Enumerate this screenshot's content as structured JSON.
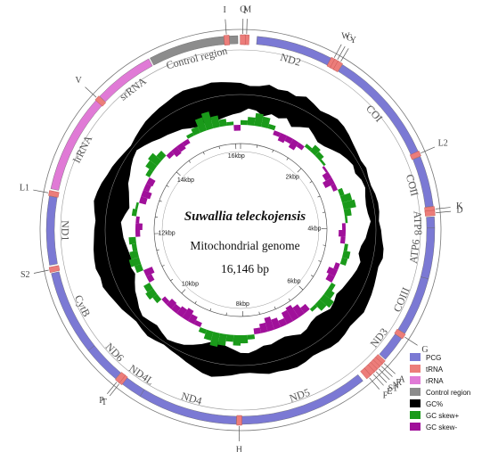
{
  "center": {
    "species": "Suwallia teleckojensis",
    "subtitle": "Mitochondrial genome",
    "length": "16,146 bp"
  },
  "genome": {
    "total_bp": 16146,
    "features": [
      {
        "name": "Control region",
        "type": "control",
        "start": 14900,
        "end": 16110,
        "label": "Control region"
      },
      {
        "name": "ND2",
        "type": "pcg",
        "start": 220,
        "end": 1250,
        "label": "ND2"
      },
      {
        "name": "COI",
        "type": "pcg",
        "start": 1420,
        "end": 2970,
        "label": "COI"
      },
      {
        "name": "COII",
        "type": "pcg",
        "start": 3040,
        "end": 3720,
        "label": "COII"
      },
      {
        "name": "ATP8",
        "type": "pcg",
        "start": 3860,
        "end": 4010,
        "label": "ATP8"
      },
      {
        "name": "ATP6",
        "type": "pcg",
        "start": 4010,
        "end": 4690,
        "label": "ATP6"
      },
      {
        "name": "COIII",
        "type": "pcg",
        "start": 4690,
        "end": 5480,
        "label": "COIII"
      },
      {
        "name": "ND3",
        "type": "pcg",
        "start": 5560,
        "end": 5910,
        "label": "ND3"
      },
      {
        "name": "ND5",
        "type": "pcg",
        "start": 6320,
        "end": 8060,
        "label": "ND5"
      },
      {
        "name": "ND4",
        "type": "pcg",
        "start": 8130,
        "end": 9470,
        "label": "ND4"
      },
      {
        "name": "ND4L",
        "type": "pcg",
        "start": 9470,
        "end": 9760,
        "label": "ND4L"
      },
      {
        "name": "ND6",
        "type": "pcg",
        "start": 9870,
        "end": 10390,
        "label": "ND6"
      },
      {
        "name": "CytB",
        "type": "pcg",
        "start": 10390,
        "end": 11530,
        "label": "CytB"
      },
      {
        "name": "ND1",
        "type": "pcg",
        "start": 11640,
        "end": 12560,
        "label": "ND1"
      },
      {
        "name": "lrRNA",
        "type": "rrna",
        "start": 12660,
        "end": 13990,
        "label": "lrRNA"
      },
      {
        "name": "srRNA",
        "type": "rrna",
        "start": 14060,
        "end": 14880,
        "label": "srRNA"
      }
    ],
    "trnas": [
      {
        "label": "I",
        "pos": 15960
      },
      {
        "label": "M",
        "pos": 80
      },
      {
        "label": "Q",
        "pos": 30
      },
      {
        "label": "W",
        "pos": 1280
      },
      {
        "label": "C",
        "pos": 1330
      },
      {
        "label": "Y",
        "pos": 1380
      },
      {
        "label": "L2",
        "pos": 3000
      },
      {
        "label": "K",
        "pos": 3760
      },
      {
        "label": "D",
        "pos": 3810
      },
      {
        "label": "G",
        "pos": 5520
      },
      {
        "label": "A",
        "pos": 5960
      },
      {
        "label": "R",
        "pos": 6010
      },
      {
        "label": "N",
        "pos": 6060
      },
      {
        "label": "S1",
        "pos": 6110
      },
      {
        "label": "E",
        "pos": 6160
      },
      {
        "label": "F",
        "pos": 6230
      },
      {
        "label": "H",
        "pos": 8090
      },
      {
        "label": "T",
        "pos": 9790
      },
      {
        "label": "P",
        "pos": 9830
      },
      {
        "label": "S2",
        "pos": 11580
      },
      {
        "label": "L1",
        "pos": 12600
      },
      {
        "label": "V",
        "pos": 14020
      }
    ]
  },
  "kbp_ticks": [
    {
      "label": "2kbp",
      "pos": 2000
    },
    {
      "label": "4kbp",
      "pos": 4000
    },
    {
      "label": "6kbp",
      "pos": 6000
    },
    {
      "label": "8kbp",
      "pos": 8000
    },
    {
      "label": "10kbp",
      "pos": 10000
    },
    {
      "label": "12kbp",
      "pos": 12000
    },
    {
      "label": "14kbp",
      "pos": 14000
    },
    {
      "label": "16kbp",
      "pos": 16000
    }
  ],
  "legend": [
    {
      "label": "PCG",
      "color": "#7b79d4"
    },
    {
      "label": "tRNA",
      "color": "#ec7d7a"
    },
    {
      "label": "rRNA",
      "color": "#e07ad6"
    },
    {
      "label": "Control region",
      "color": "#8c8c8c"
    },
    {
      "label": "GC%",
      "color": "#000000"
    },
    {
      "label": "GC  skew+",
      "color": "#1a9a1a"
    },
    {
      "label": "GC  skew-",
      "color": "#a0109a"
    }
  ],
  "colors": {
    "pcg": "#7b79d4",
    "trna": "#ec7d7a",
    "rrna": "#e07ad6",
    "control": "#8c8c8c",
    "gc_content": "#000000",
    "gc_skew_pos": "#1a9a1a",
    "gc_skew_neg": "#a0109a"
  },
  "gc_content": [
    0.72,
    0.55,
    0.6,
    0.78,
    0.62,
    0.7,
    0.58,
    0.82,
    0.66,
    0.5,
    0.62,
    0.74,
    0.68,
    0.55,
    0.4,
    0.3,
    0.22,
    0.3,
    0.18,
    0.15,
    0.25,
    0.3,
    0.28,
    0.2,
    0.32,
    0.4,
    0.55,
    0.6,
    0.45,
    0.5,
    0.58,
    0.66,
    0.72,
    0.8,
    0.7,
    0.64,
    0.75,
    0.82,
    0.78,
    0.65,
    0.6,
    0.72,
    0.8,
    0.76,
    0.68,
    0.7,
    0.58,
    0.48,
    0.5,
    0.64,
    0.75,
    0.88,
    0.78,
    0.6,
    0.45,
    0.3,
    0.22,
    0.15,
    0.25,
    0.35,
    0.28,
    0.2,
    0.3,
    0.45,
    0.55,
    0.7,
    0.85,
    0.78,
    0.9,
    0.86,
    0.8,
    0.72,
    0.68,
    0.62,
    0.75,
    0.88,
    0.8,
    0.7,
    0.55,
    0.48,
    0.36,
    0.25,
    0.18,
    0.3,
    0.42,
    0.55,
    0.62,
    0.7,
    0.76,
    0.88,
    0.95,
    0.9,
    0.86,
    0.92,
    0.85,
    0.78
  ],
  "gc_skew": [
    0.2,
    0.35,
    0.55,
    0.45,
    0.2,
    -0.2,
    -0.35,
    -0.25,
    -0.4,
    -0.2,
    0.15,
    0.35,
    0.25,
    0.1,
    -0.1,
    -0.3,
    -0.45,
    -0.2,
    0.2,
    0.45,
    0.55,
    0.3,
    0.1,
    -0.15,
    -0.3,
    -0.2,
    0.15,
    0.3,
    0.25,
    -0.2,
    -0.4,
    -0.3,
    0.2,
    0.35,
    0.55,
    0.4,
    0.15,
    -0.3,
    -0.5,
    -0.65,
    -0.55,
    -0.3,
    -0.45,
    -0.6,
    -0.4,
    -0.25,
    0.2,
    0.35,
    0.45,
    0.3,
    0.5,
    0.6,
    0.4,
    0.2,
    -0.2,
    -0.35,
    -0.5,
    -0.4,
    -0.3,
    -0.35,
    -0.2,
    0.25,
    0.4,
    0.3,
    -0.25,
    -0.4,
    0.3,
    0.45,
    0.35,
    0.2,
    0.3,
    -0.2,
    -0.3,
    -0.15,
    0.2,
    0.1,
    -0.3,
    -0.4,
    -0.25,
    -0.3,
    0.2,
    0.4,
    0.5,
    0.3,
    -0.2,
    -0.35,
    -0.3,
    -0.2,
    0.15,
    0.3,
    0.6,
    0.75,
    0.5,
    0.3,
    0.15,
    -0.25
  ]
}
